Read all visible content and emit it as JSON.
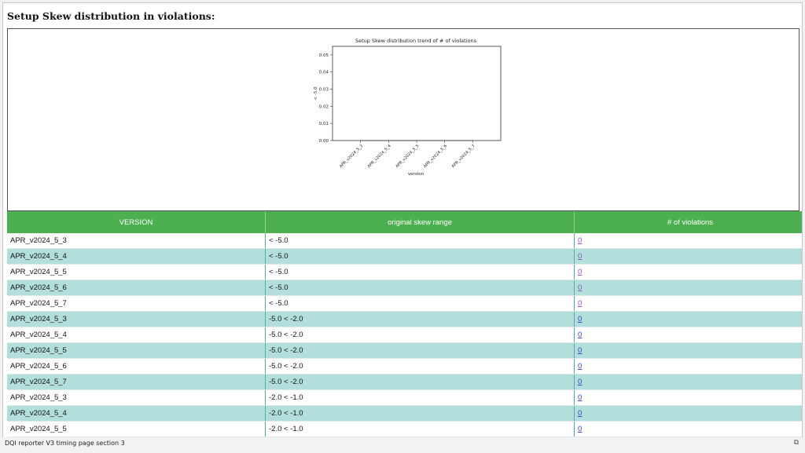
{
  "section": {
    "title": "Setup Skew distribution in violations:"
  },
  "chart_data": {
    "type": "line",
    "title": "Setup Skew distribution trend of # of violations",
    "xlabel": "version",
    "ylabel": "< -5.0",
    "categories": [
      "APR_v2024_5_3",
      "APR_v2024_5_4",
      "APR_v2024_5_5",
      "APR_v2024_5_6",
      "APR_v2024_5_7"
    ],
    "series": [
      {
        "values": [
          0,
          0,
          0,
          0,
          0
        ]
      }
    ],
    "ylim": [
      0,
      0.055
    ],
    "yticks": [
      "0.00",
      "0.01",
      "0.02",
      "0.03",
      "0.04",
      "0.05"
    ],
    "grid": false
  },
  "table": {
    "headers": [
      "VERSION",
      "original skew range",
      "# of violations"
    ],
    "rows": [
      {
        "version": "APR_v2024_5_3",
        "range": "< -5.0",
        "count": "0",
        "visited": true
      },
      {
        "version": "APR_v2024_5_4",
        "range": "< -5.0",
        "count": "0",
        "visited": true
      },
      {
        "version": "APR_v2024_5_5",
        "range": "< -5.0",
        "count": "0",
        "visited": true
      },
      {
        "version": "APR_v2024_5_6",
        "range": "< -5.0",
        "count": "0",
        "visited": true
      },
      {
        "version": "APR_v2024_5_7",
        "range": "< -5.0",
        "count": "0",
        "visited": true
      },
      {
        "version": "APR_v2024_5_3",
        "range": "-5.0 < -2.0",
        "count": "0",
        "visited": false
      },
      {
        "version": "APR_v2024_5_4",
        "range": "-5.0 < -2.0",
        "count": "0",
        "visited": false
      },
      {
        "version": "APR_v2024_5_5",
        "range": "-5.0 < -2.0",
        "count": "0",
        "visited": false
      },
      {
        "version": "APR_v2024_5_6",
        "range": "-5.0 < -2.0",
        "count": "0",
        "visited": false
      },
      {
        "version": "APR_v2024_5_7",
        "range": "-5.0 < -2.0",
        "count": "0",
        "visited": false
      },
      {
        "version": "APR_v2024_5_3",
        "range": "-2.0 < -1.0",
        "count": "0",
        "visited": false
      },
      {
        "version": "APR_v2024_5_4",
        "range": "-2.0 < -1.0",
        "count": "0",
        "visited": false
      },
      {
        "version": "APR_v2024_5_5",
        "range": "-2.0 < -1.0",
        "count": "0",
        "visited": false
      }
    ]
  },
  "colors": {
    "header_bg": "#4caf50",
    "row_alt_bg": "#b2dfdb",
    "link": "#3344cc",
    "link_visited": "#8855bb"
  },
  "status_bar": {
    "text": "DQI reporter V3 timing page section 3",
    "icon": "popout-icon"
  }
}
